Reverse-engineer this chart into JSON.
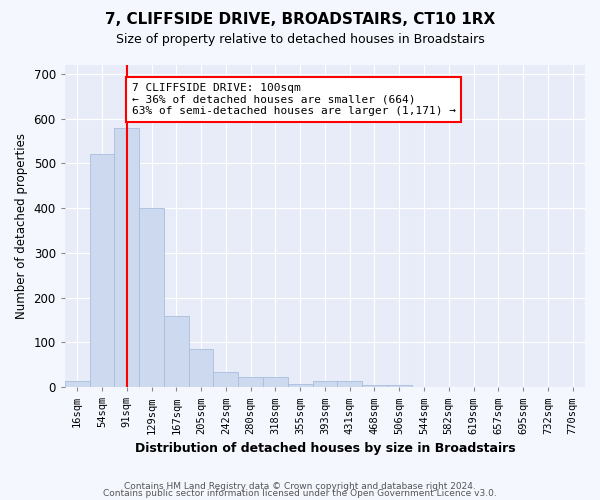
{
  "title": "7, CLIFFSIDE DRIVE, BROADSTAIRS, CT10 1RX",
  "subtitle": "Size of property relative to detached houses in Broadstairs",
  "xlabel": "Distribution of detached houses by size in Broadstairs",
  "ylabel": "Number of detached properties",
  "bar_labels": [
    "16sqm",
    "54sqm",
    "91sqm",
    "129sqm",
    "167sqm",
    "205sqm",
    "242sqm",
    "280sqm",
    "318sqm",
    "355sqm",
    "393sqm",
    "431sqm",
    "468sqm",
    "506sqm",
    "544sqm",
    "582sqm",
    "619sqm",
    "657sqm",
    "695sqm",
    "732sqm",
    "770sqm"
  ],
  "bar_values": [
    14,
    520,
    580,
    400,
    160,
    85,
    33,
    22,
    22,
    8,
    13,
    13,
    5,
    4,
    1,
    0,
    0,
    0,
    0,
    0,
    0
  ],
  "bar_color": "#ccd9ee",
  "bar_edge_color": "#a8bedd",
  "redline_index": 2,
  "redline_label": "7 CLIFFSIDE DRIVE: 100sqm",
  "annotation_line1": "← 36% of detached houses are smaller (664)",
  "annotation_line2": "63% of semi-detached houses are larger (1,171) →",
  "annotation_box_color": "white",
  "annotation_box_edge": "red",
  "ylim": [
    0,
    720
  ],
  "yticks": [
    0,
    100,
    200,
    300,
    400,
    500,
    600,
    700
  ],
  "footer1": "Contains HM Land Registry data © Crown copyright and database right 2024.",
  "footer2": "Contains public sector information licensed under the Open Government Licence v3.0.",
  "bg_color": "#f5f7ff",
  "plot_bg_color": "#e8ecf8"
}
